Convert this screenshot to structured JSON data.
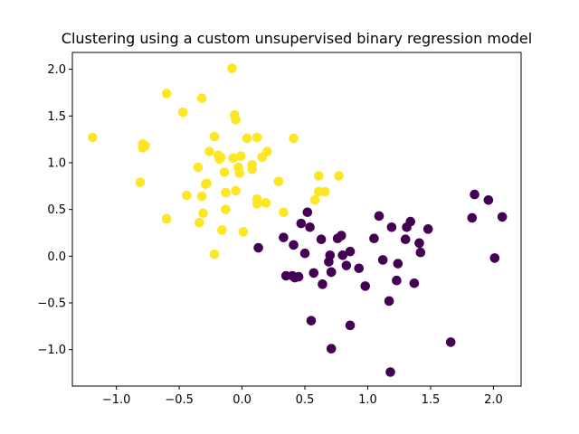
{
  "chart_data": {
    "type": "scatter",
    "title": "Clustering using a custom unsupervised binary regression model",
    "xlabel": "",
    "ylabel": "",
    "xlim": [
      -1.35,
      2.22
    ],
    "ylim": [
      -1.39,
      2.18
    ],
    "x_ticks": [
      -1.0,
      -0.5,
      0.0,
      0.5,
      1.0,
      1.5,
      2.0
    ],
    "x_tick_labels": [
      "−1.0",
      "−0.5",
      "0.0",
      "0.5",
      "1.0",
      "1.5",
      "2.0"
    ],
    "y_ticks": [
      -1.0,
      -0.5,
      0.0,
      0.5,
      1.0,
      1.5,
      2.0
    ],
    "y_tick_labels": [
      "−1.0",
      "−0.5",
      "0.0",
      "0.5",
      "1.0",
      "1.5",
      "2.0"
    ],
    "grid": false,
    "series": [
      {
        "color": "#fde725",
        "points": [
          [
            -1.19,
            1.27
          ],
          [
            -0.81,
            0.79
          ],
          [
            -0.79,
            1.16
          ],
          [
            -0.79,
            1.2
          ],
          [
            -0.77,
            1.18
          ],
          [
            -0.6,
            1.74
          ],
          [
            -0.6,
            0.4
          ],
          [
            -0.47,
            1.54
          ],
          [
            -0.44,
            0.65
          ],
          [
            -0.35,
            0.95
          ],
          [
            -0.34,
            0.36
          ],
          [
            -0.32,
            1.69
          ],
          [
            -0.32,
            0.64
          ],
          [
            -0.31,
            0.46
          ],
          [
            -0.29,
            0.77
          ],
          [
            -0.28,
            0.78
          ],
          [
            -0.26,
            1.12
          ],
          [
            -0.22,
            1.28
          ],
          [
            -0.22,
            0.02
          ],
          [
            -0.19,
            1.08
          ],
          [
            -0.18,
            1.04
          ],
          [
            -0.17,
            1.06
          ],
          [
            -0.16,
            0.28
          ],
          [
            -0.14,
            0.9
          ],
          [
            -0.13,
            0.68
          ],
          [
            -0.13,
            0.5
          ],
          [
            -0.08,
            2.01
          ],
          [
            -0.07,
            1.05
          ],
          [
            -0.06,
            1.51
          ],
          [
            -0.05,
            1.46
          ],
          [
            -0.05,
            0.7
          ],
          [
            -0.03,
            0.95
          ],
          [
            -0.02,
            0.89
          ],
          [
            -0.01,
            1.07
          ],
          [
            0.01,
            0.26
          ],
          [
            0.04,
            1.26
          ],
          [
            0.08,
            0.98
          ],
          [
            0.08,
            0.93
          ],
          [
            0.12,
            1.27
          ],
          [
            0.12,
            0.61
          ],
          [
            0.12,
            0.56
          ],
          [
            0.16,
            1.06
          ],
          [
            0.19,
            0.57
          ],
          [
            0.2,
            1.12
          ],
          [
            0.29,
            0.8
          ],
          [
            0.33,
            0.47
          ],
          [
            0.41,
            1.26
          ],
          [
            0.58,
            0.6
          ],
          [
            0.61,
            0.86
          ],
          [
            0.61,
            0.69
          ],
          [
            0.66,
            0.69
          ],
          [
            0.77,
            0.86
          ]
        ]
      },
      {
        "color": "#440154",
        "points": [
          [
            0.13,
            0.09
          ],
          [
            0.33,
            0.2
          ],
          [
            0.35,
            -0.21
          ],
          [
            0.4,
            -0.21
          ],
          [
            0.41,
            0.12
          ],
          [
            0.42,
            -0.23
          ],
          [
            0.45,
            -0.22
          ],
          [
            0.47,
            0.35
          ],
          [
            0.5,
            0.03
          ],
          [
            0.52,
            0.47
          ],
          [
            0.54,
            0.31
          ],
          [
            0.55,
            -0.69
          ],
          [
            0.57,
            -0.18
          ],
          [
            0.63,
            0.18
          ],
          [
            0.64,
            -0.3
          ],
          [
            0.69,
            -0.06
          ],
          [
            0.7,
            0.01
          ],
          [
            0.71,
            -0.17
          ],
          [
            0.71,
            -0.17
          ],
          [
            0.71,
            -0.99
          ],
          [
            0.76,
            0.19
          ],
          [
            0.79,
            0.22
          ],
          [
            0.8,
            0.01
          ],
          [
            0.83,
            -0.1
          ],
          [
            0.86,
            0.05
          ],
          [
            0.86,
            -0.74
          ],
          [
            0.93,
            -0.13
          ],
          [
            0.98,
            -0.32
          ],
          [
            1.05,
            0.19
          ],
          [
            1.09,
            0.43
          ],
          [
            1.12,
            -0.04
          ],
          [
            1.17,
            -0.48
          ],
          [
            1.18,
            -1.24
          ],
          [
            1.19,
            0.31
          ],
          [
            1.23,
            -0.26
          ],
          [
            1.24,
            -0.08
          ],
          [
            1.3,
            0.18
          ],
          [
            1.31,
            0.31
          ],
          [
            1.34,
            0.37
          ],
          [
            1.37,
            -0.29
          ],
          [
            1.41,
            0.14
          ],
          [
            1.42,
            0.04
          ],
          [
            1.48,
            0.29
          ],
          [
            1.66,
            -0.92
          ],
          [
            1.83,
            0.41
          ],
          [
            1.85,
            0.66
          ],
          [
            1.96,
            0.6
          ],
          [
            2.01,
            -0.02
          ],
          [
            2.07,
            0.42
          ]
        ]
      }
    ]
  }
}
